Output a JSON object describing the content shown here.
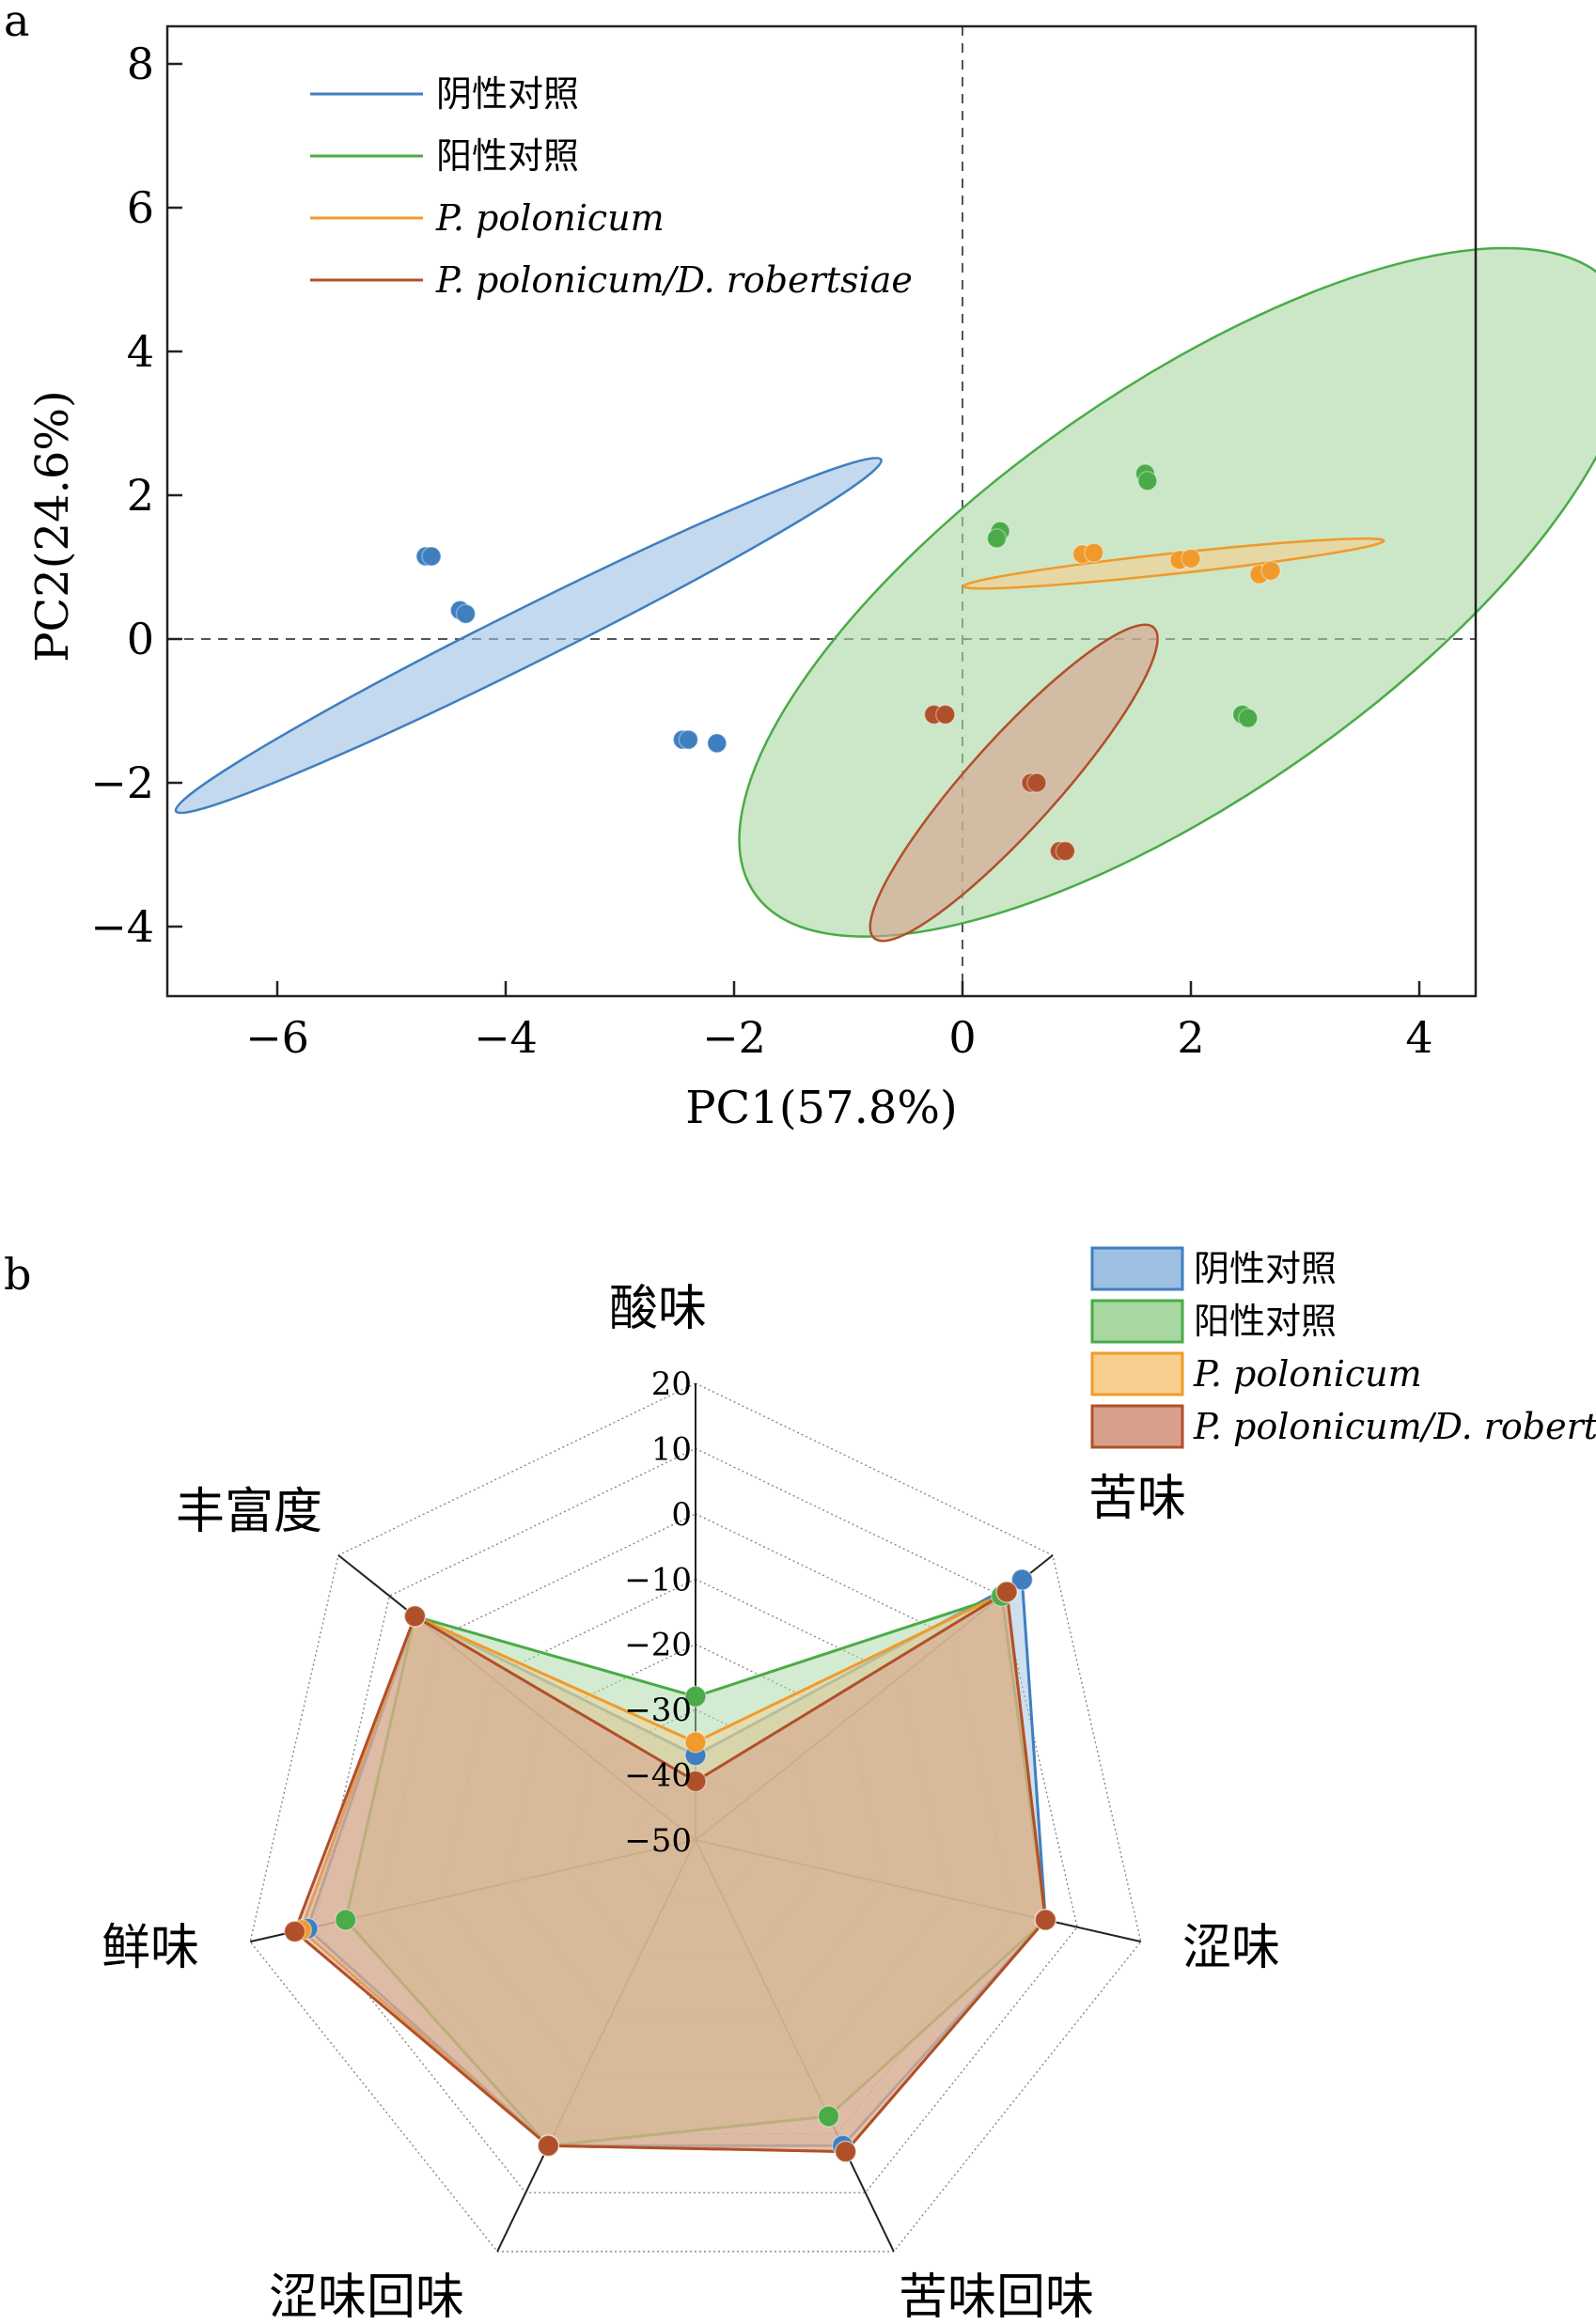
{
  "colors": {
    "neg": "#3f7fc0",
    "pos": "#4aab48",
    "pp": "#f09a2c",
    "ppdr": "#b0502a",
    "neg_fill": "#9dc0e2",
    "pos_fill": "#a8d7a2",
    "pp_fill": "#f7cf8e",
    "ppdr_fill": "#d8a08c"
  },
  "chart_data": [
    {
      "panel_label": "a",
      "type": "scatter",
      "xlabel": "PC1(57.8%)",
      "ylabel": "PC2(24.6%)",
      "xlim": [
        -7,
        4.5
      ],
      "ylim": [
        -5,
        9
      ],
      "xticks": [
        -6,
        -4,
        -2,
        0,
        2,
        4
      ],
      "yticks": [
        8,
        6,
        4,
        2,
        0,
        -2,
        -4
      ],
      "xtick_labels": [
        "−6",
        "−4",
        "−2",
        "0",
        "2",
        "4"
      ],
      "ytick_labels": [
        "8",
        "6",
        "4",
        "2",
        "0",
        "−2",
        "−4"
      ],
      "reference_lines": {
        "x": 0,
        "y": 0,
        "style": "dashed"
      },
      "legend_position": "top-left",
      "series": [
        {
          "name": "阴性对照",
          "color_key": "neg",
          "points": [
            [
              -4.7,
              1.15
            ],
            [
              -4.65,
              1.15
            ],
            [
              -4.4,
              0.4
            ],
            [
              -4.35,
              0.35
            ],
            [
              -2.45,
              -1.4
            ],
            [
              -2.4,
              -1.4
            ],
            [
              -2.15,
              -1.45
            ]
          ],
          "ellipse": {
            "cx": -3.8,
            "cy": 0.05,
            "rx": 3.45,
            "ry": 0.24,
            "angle_deg": -26.5
          }
        },
        {
          "name": "阳性对照",
          "color_key": "pos",
          "points": [
            [
              1.6,
              2.3
            ],
            [
              1.62,
              2.2
            ],
            [
              0.33,
              1.5
            ],
            [
              0.3,
              1.4
            ],
            [
              2.45,
              -1.05
            ],
            [
              2.5,
              -1.1
            ]
          ],
          "ellipse": {
            "cx": 1.95,
            "cy": 0.65,
            "rx": 4.6,
            "ry": 1.78,
            "angle_deg": -35
          }
        },
        {
          "name": "P. polonicum",
          "color_key": "pp",
          "points": [
            [
              1.05,
              1.18
            ],
            [
              1.15,
              1.2
            ],
            [
              1.9,
              1.1
            ],
            [
              2.0,
              1.12
            ],
            [
              2.6,
              0.9
            ],
            [
              2.7,
              0.95
            ]
          ],
          "ellipse": {
            "cx": 1.85,
            "cy": 1.05,
            "rx": 1.85,
            "ry": 0.09,
            "angle_deg": -6.2
          }
        },
        {
          "name": "P. polonicum/D. robertsiae",
          "color_key": "ppdr",
          "points": [
            [
              -0.25,
              -1.05
            ],
            [
              -0.15,
              -1.05
            ],
            [
              0.6,
              -2.0
            ],
            [
              0.65,
              -2.0
            ],
            [
              0.85,
              -2.95
            ],
            [
              0.9,
              -2.95
            ]
          ],
          "ellipse": {
            "cx": 0.45,
            "cy": -2.0,
            "rx": 1.83,
            "ry": 0.39,
            "angle_deg": -48
          }
        }
      ]
    },
    {
      "panel_label": "b",
      "type": "radar",
      "axes": [
        "酸味",
        "苦味",
        "涩味",
        "苦味回味",
        "涩味回味",
        "鲜味",
        "丰富度"
      ],
      "r_range": [
        -50,
        20
      ],
      "r_ticks": [
        20,
        10,
        0,
        -10,
        -20,
        -30,
        -40,
        -50
      ],
      "r_tick_labels": [
        "20",
        "10",
        "0",
        "−10",
        "−20",
        "−30",
        "−40",
        "−50"
      ],
      "legend_position": "top-right",
      "series": [
        {
          "name": "阴性对照",
          "color_key": "neg",
          "values": [
            -37,
            14,
            5,
            2,
            2,
            11,
            5
          ]
        },
        {
          "name": "阳性对照",
          "color_key": "pos",
          "values": [
            -28,
            10,
            5,
            -3,
            2,
            5,
            5
          ]
        },
        {
          "name": "P. polonicum",
          "color_key": "pp",
          "values": [
            -35,
            11,
            5,
            3,
            2,
            12,
            5
          ]
        },
        {
          "name": "P. polonicum/D. robertsiae",
          "color_key": "ppdr",
          "values": [
            -41,
            11,
            5,
            3,
            2,
            13,
            5
          ]
        }
      ]
    }
  ]
}
